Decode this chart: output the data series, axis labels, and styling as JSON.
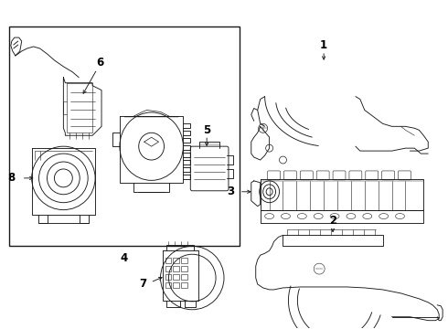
{
  "background_color": "#ffffff",
  "line_color": "#1a1a1a",
  "box_color": "#1a1a1a",
  "label_color": "#000000",
  "fig_width": 4.9,
  "fig_height": 3.6,
  "dpi": 100,
  "font_size": 8.5,
  "lw": 0.65
}
